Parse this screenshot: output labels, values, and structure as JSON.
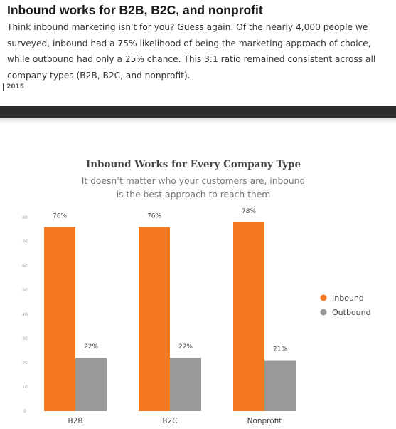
{
  "article": {
    "headline": "Inbound works for B2B, B2C, and nonprofit",
    "body_lines": [
      "Think inbound marketing isn't for you? Guess again. Of the nearly 4,000 people we",
      "surveyed, inbound had a 75% likelihood of being the marketing approach of choice,",
      "while outbound had only a 25% chance. This 3:1 ratio remained consistent across all",
      "company types (B2B, B2C, and nonprofit)."
    ],
    "year": "2015"
  },
  "chart_data": {
    "type": "bar",
    "title": "Inbound Works for Every Company Type",
    "subtitle_lines": [
      "It doesn’t matter who your customers are, inbound",
      "is the best approach to reach them"
    ],
    "categories": [
      "B2B",
      "B2C",
      "Nonprofit"
    ],
    "series": [
      {
        "name": "Inbound",
        "color": "#f47920",
        "values": [
          76,
          76,
          78
        ],
        "labels": [
          "76%",
          "76%",
          "78%"
        ]
      },
      {
        "name": "Outbound",
        "color": "#999999",
        "values": [
          22,
          22,
          21
        ],
        "labels": [
          "22%",
          "22%",
          "21%"
        ]
      }
    ],
    "yticks": [
      0,
      10,
      20,
      30,
      40,
      50,
      60,
      70,
      80
    ],
    "ylim": [
      0,
      80
    ],
    "grid": false,
    "legend": "right"
  }
}
